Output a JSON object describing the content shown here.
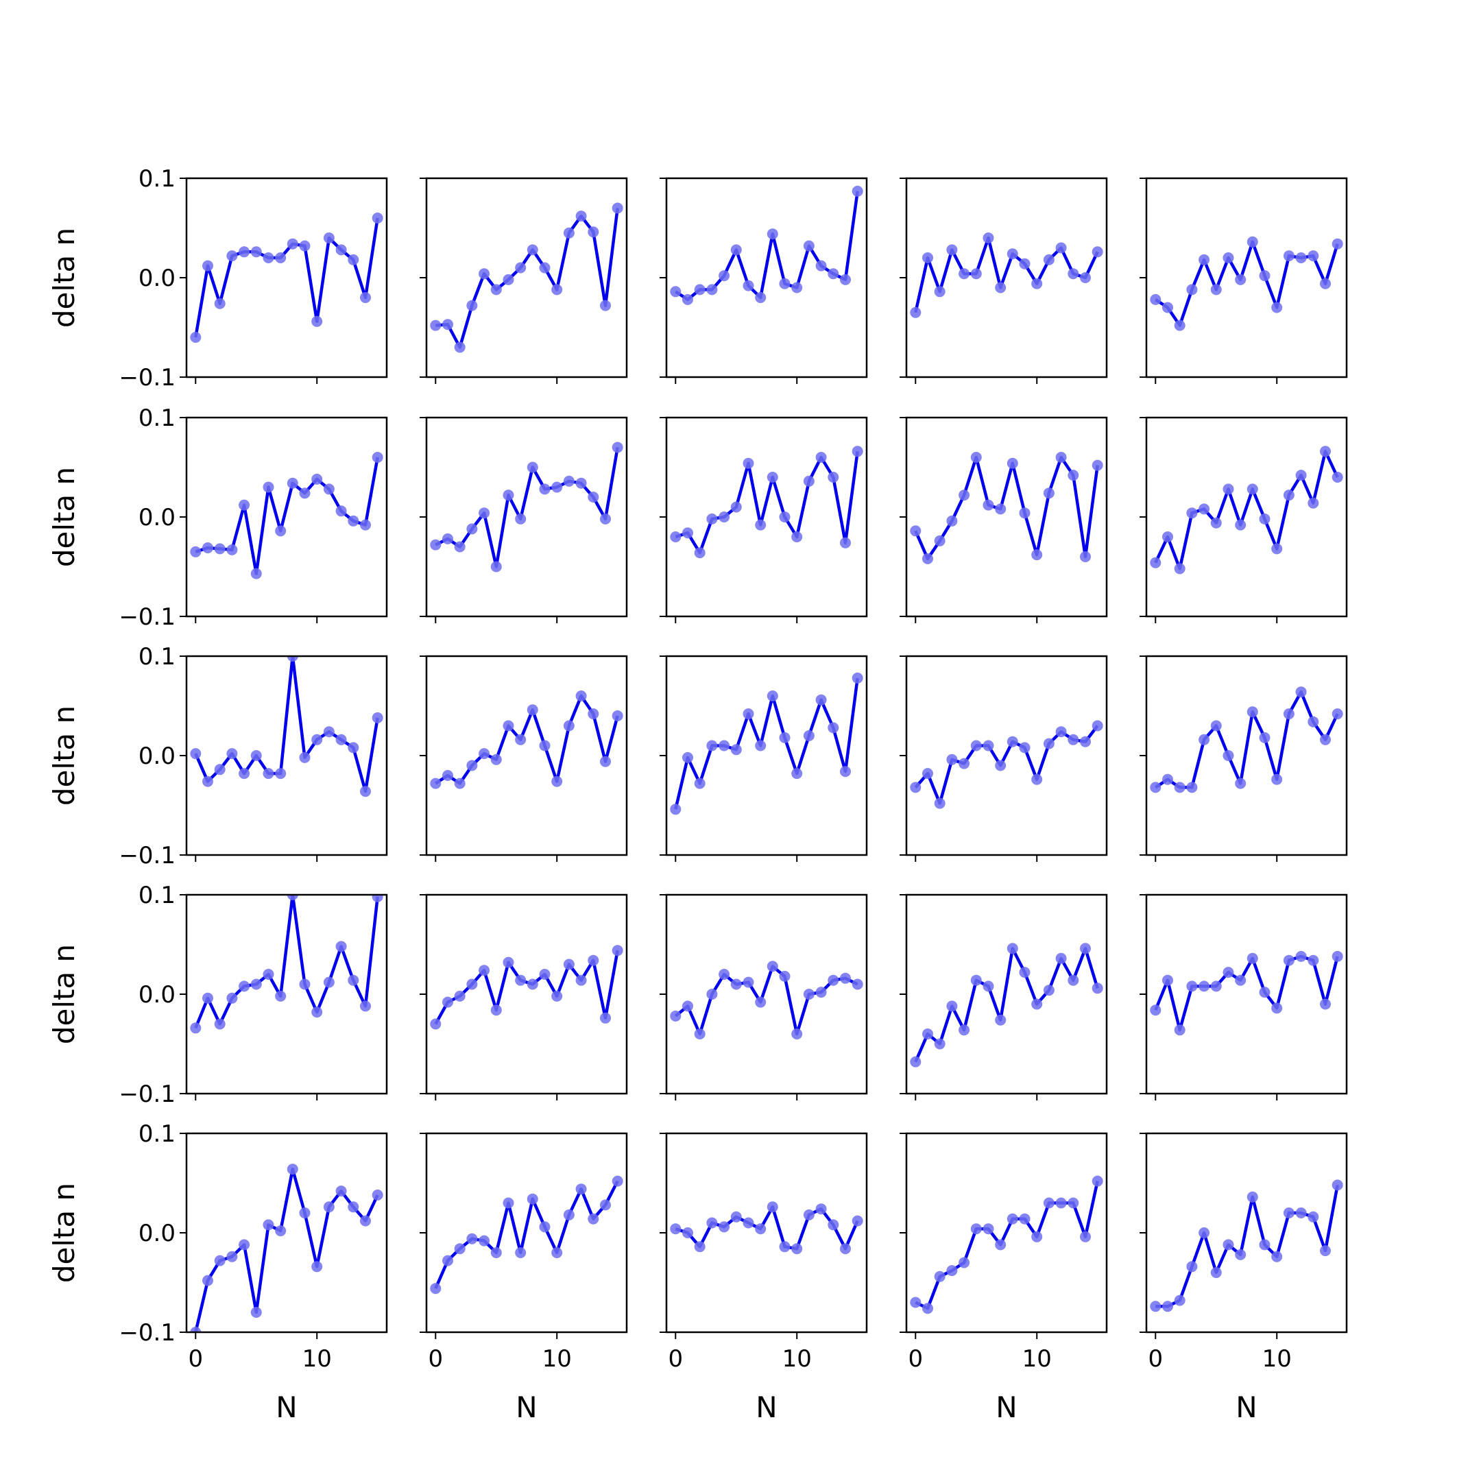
{
  "chart_data": {
    "type": "line",
    "layout": "5x5 grid of subplots, shared x and y axes",
    "xlabel": "N",
    "ylabel": "delta n",
    "xlim": [
      -0.75,
      15.75
    ],
    "ylim": [
      -0.1,
      0.1
    ],
    "xticks": [
      0,
      10
    ],
    "xtick_labels": [
      "0",
      "10"
    ],
    "yticks": [
      0.1,
      0.0,
      -0.1
    ],
    "ytick_labels": [
      "0.1",
      "0.0",
      "−0.1"
    ],
    "line_color": "#0000ee",
    "marker_color": "#6d6dee",
    "x": [
      0,
      1,
      2,
      3,
      4,
      5,
      6,
      7,
      8,
      9,
      10,
      11,
      12,
      13,
      14,
      15
    ],
    "panels": [
      {
        "row": 1,
        "col": 1,
        "values": [
          -0.06,
          0.012,
          -0.026,
          0.022,
          0.026,
          0.026,
          0.02,
          0.02,
          0.034,
          0.032,
          -0.044,
          0.04,
          0.028,
          0.018,
          -0.02,
          0.06
        ]
      },
      {
        "row": 1,
        "col": 2,
        "values": [
          -0.048,
          -0.047,
          -0.07,
          -0.028,
          0.004,
          -0.012,
          -0.002,
          0.01,
          0.028,
          0.01,
          -0.012,
          0.045,
          0.062,
          0.046,
          -0.028,
          0.07
        ]
      },
      {
        "row": 1,
        "col": 3,
        "values": [
          -0.014,
          -0.022,
          -0.012,
          -0.012,
          0.002,
          0.028,
          -0.008,
          -0.02,
          0.044,
          -0.006,
          -0.01,
          0.032,
          0.012,
          0.004,
          -0.002,
          0.087
        ]
      },
      {
        "row": 1,
        "col": 4,
        "values": [
          -0.035,
          0.02,
          -0.014,
          0.028,
          0.004,
          0.004,
          0.04,
          -0.01,
          0.024,
          0.014,
          -0.006,
          0.018,
          0.03,
          0.004,
          0.0,
          0.026
        ]
      },
      {
        "row": 1,
        "col": 5,
        "values": [
          -0.022,
          -0.03,
          -0.048,
          -0.012,
          0.018,
          -0.012,
          0.02,
          -0.002,
          0.036,
          0.002,
          -0.03,
          0.022,
          0.02,
          0.022,
          -0.006,
          0.034
        ]
      },
      {
        "row": 2,
        "col": 1,
        "values": [
          -0.035,
          -0.031,
          -0.032,
          -0.033,
          0.012,
          -0.057,
          0.03,
          -0.014,
          0.034,
          0.024,
          0.038,
          0.028,
          0.006,
          -0.004,
          -0.008,
          0.06
        ]
      },
      {
        "row": 2,
        "col": 2,
        "values": [
          -0.028,
          -0.022,
          -0.03,
          -0.012,
          0.004,
          -0.05,
          0.022,
          -0.002,
          0.05,
          0.028,
          0.03,
          0.036,
          0.034,
          0.02,
          -0.002,
          0.07
        ]
      },
      {
        "row": 2,
        "col": 3,
        "values": [
          -0.02,
          -0.016,
          -0.036,
          -0.002,
          0.0,
          0.01,
          0.054,
          -0.008,
          0.04,
          0.0,
          -0.02,
          0.036,
          0.06,
          0.04,
          -0.026,
          0.066
        ]
      },
      {
        "row": 2,
        "col": 4,
        "values": [
          -0.014,
          -0.042,
          -0.024,
          -0.004,
          0.022,
          0.06,
          0.012,
          0.008,
          0.054,
          0.004,
          -0.038,
          0.024,
          0.06,
          0.042,
          -0.04,
          0.052
        ]
      },
      {
        "row": 2,
        "col": 5,
        "values": [
          -0.046,
          -0.02,
          -0.052,
          0.004,
          0.008,
          -0.006,
          0.028,
          -0.008,
          0.028,
          -0.002,
          -0.032,
          0.022,
          0.042,
          0.014,
          0.066,
          0.04
        ]
      },
      {
        "row": 3,
        "col": 1,
        "values": [
          0.002,
          -0.026,
          -0.014,
          0.002,
          -0.018,
          0.0,
          -0.018,
          -0.018,
          0.1,
          -0.002,
          0.016,
          0.024,
          0.016,
          0.008,
          -0.036,
          0.038
        ]
      },
      {
        "row": 3,
        "col": 2,
        "values": [
          -0.028,
          -0.02,
          -0.028,
          -0.01,
          0.002,
          -0.004,
          0.03,
          0.016,
          0.046,
          0.01,
          -0.026,
          0.03,
          0.06,
          0.042,
          -0.006,
          0.04
        ]
      },
      {
        "row": 3,
        "col": 3,
        "values": [
          -0.054,
          -0.002,
          -0.028,
          0.01,
          0.01,
          0.006,
          0.042,
          0.01,
          0.06,
          0.018,
          -0.018,
          0.02,
          0.056,
          0.028,
          -0.016,
          0.078
        ]
      },
      {
        "row": 3,
        "col": 4,
        "values": [
          -0.032,
          -0.018,
          -0.048,
          -0.004,
          -0.008,
          0.01,
          0.01,
          -0.01,
          0.014,
          0.008,
          -0.024,
          0.012,
          0.024,
          0.016,
          0.014,
          0.03
        ]
      },
      {
        "row": 3,
        "col": 5,
        "values": [
          -0.032,
          -0.024,
          -0.032,
          -0.032,
          0.016,
          0.03,
          0.0,
          -0.028,
          0.044,
          0.018,
          -0.024,
          0.042,
          0.064,
          0.034,
          0.016,
          0.042
        ]
      },
      {
        "row": 4,
        "col": 1,
        "values": [
          -0.034,
          -0.004,
          -0.03,
          -0.004,
          0.008,
          0.01,
          0.02,
          -0.002,
          0.1,
          0.01,
          -0.018,
          0.012,
          0.048,
          0.014,
          -0.012,
          0.098
        ]
      },
      {
        "row": 4,
        "col": 2,
        "values": [
          -0.03,
          -0.008,
          -0.002,
          0.01,
          0.024,
          -0.016,
          0.032,
          0.014,
          0.01,
          0.02,
          -0.002,
          0.03,
          0.014,
          0.034,
          -0.024,
          0.044
        ]
      },
      {
        "row": 4,
        "col": 3,
        "values": [
          -0.022,
          -0.012,
          -0.04,
          0.0,
          0.02,
          0.01,
          0.012,
          -0.008,
          0.028,
          0.018,
          -0.04,
          0.0,
          0.002,
          0.014,
          0.016,
          0.01
        ]
      },
      {
        "row": 4,
        "col": 4,
        "values": [
          -0.068,
          -0.04,
          -0.05,
          -0.012,
          -0.036,
          0.014,
          0.008,
          -0.026,
          0.046,
          0.022,
          -0.01,
          0.004,
          0.036,
          0.014,
          0.046,
          0.006
        ]
      },
      {
        "row": 4,
        "col": 5,
        "values": [
          -0.016,
          0.014,
          -0.036,
          0.008,
          0.008,
          0.008,
          0.022,
          0.014,
          0.036,
          0.002,
          -0.014,
          0.034,
          0.038,
          0.034,
          -0.01,
          0.038
        ]
      },
      {
        "row": 5,
        "col": 1,
        "values": [
          -0.1,
          -0.048,
          -0.028,
          -0.024,
          -0.012,
          -0.08,
          0.008,
          0.002,
          0.064,
          0.02,
          -0.034,
          0.026,
          0.042,
          0.026,
          0.012,
          0.038
        ]
      },
      {
        "row": 5,
        "col": 2,
        "values": [
          -0.056,
          -0.028,
          -0.016,
          -0.006,
          -0.008,
          -0.02,
          0.03,
          -0.02,
          0.034,
          0.006,
          -0.02,
          0.018,
          0.044,
          0.014,
          0.028,
          0.052
        ]
      },
      {
        "row": 5,
        "col": 3,
        "values": [
          0.004,
          0.0,
          -0.014,
          0.01,
          0.006,
          0.016,
          0.01,
          0.004,
          0.026,
          -0.014,
          -0.016,
          0.018,
          0.024,
          0.008,
          -0.016,
          0.012
        ]
      },
      {
        "row": 5,
        "col": 4,
        "values": [
          -0.07,
          -0.076,
          -0.044,
          -0.038,
          -0.03,
          0.004,
          0.004,
          -0.012,
          0.014,
          0.014,
          -0.004,
          0.03,
          0.03,
          0.03,
          -0.004,
          0.052
        ]
      },
      {
        "row": 5,
        "col": 5,
        "values": [
          -0.074,
          -0.074,
          -0.068,
          -0.034,
          0.0,
          -0.04,
          -0.012,
          -0.022,
          0.036,
          -0.012,
          -0.024,
          0.02,
          0.02,
          0.016,
          -0.018,
          0.048
        ]
      }
    ]
  }
}
